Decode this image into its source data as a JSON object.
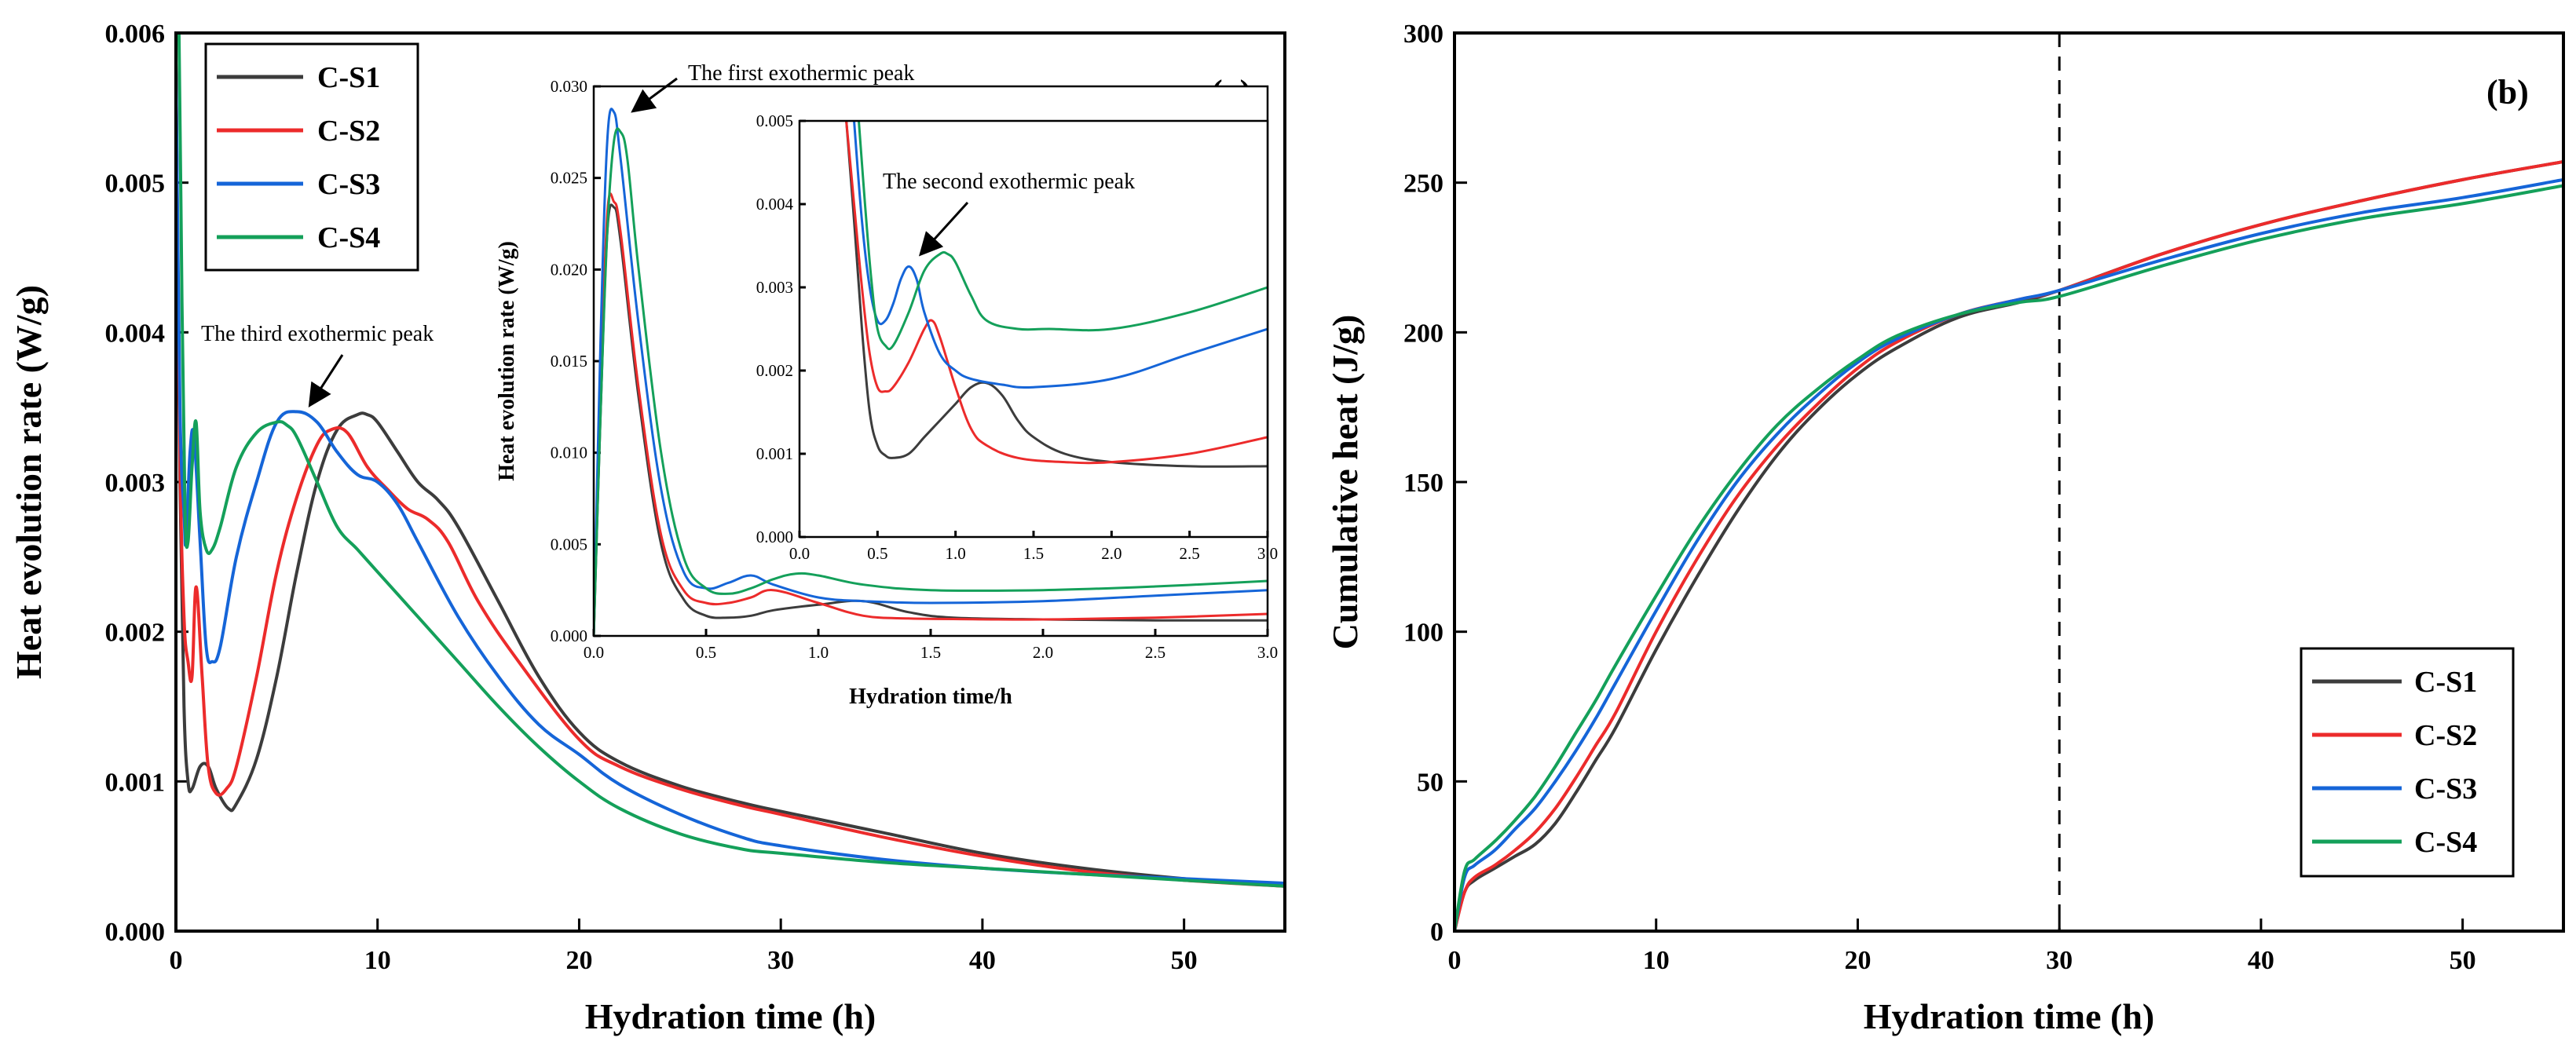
{
  "colors": {
    "C-S1": "#3c3c3c",
    "C-S2": "#ec2b2b",
    "C-S3": "#1565d8",
    "C-S4": "#14a05a"
  },
  "chart_data": [
    {
      "id": "a",
      "type": "line",
      "panel_label": "(a)",
      "xlabel": "Hydration time (h)",
      "ylabel": "Heat evolution rate (W/g)",
      "xlim": [
        0,
        55
      ],
      "ylim": [
        0,
        0.006
      ],
      "xticks": [
        0,
        10,
        20,
        30,
        40,
        50
      ],
      "xtick_labels": [
        "0",
        "10",
        "20",
        "30",
        "40",
        "50"
      ],
      "yticks": [
        0,
        0.001,
        0.002,
        0.003,
        0.004,
        0.005,
        0.006
      ],
      "ytick_labels": [
        "0.000",
        "0.001",
        "0.002",
        "0.003",
        "0.004",
        "0.005",
        "0.006"
      ],
      "legend": {
        "position": "top-left",
        "entries": [
          "C-S1",
          "C-S2",
          "C-S3",
          "C-S4"
        ]
      },
      "annotations": [
        {
          "text": "The third exothermic peak",
          "x": 5.3,
          "y": 0.00383,
          "arrow_from": [
            8.5,
            0.0037
          ],
          "arrow_to": [
            6.5,
            0.0035
          ]
        }
      ],
      "series": [
        {
          "name": "C-S1",
          "x": [
            0,
            0.2,
            0.4,
            0.6,
            0.8,
            1.2,
            1.6,
            2.0,
            2.6,
            3.0,
            4.0,
            5.0,
            6.0,
            7.0,
            8.0,
            9.0,
            9.5,
            10.0,
            11.0,
            12.0,
            13.0,
            14.0,
            16.0,
            18.0,
            20.0,
            22.0,
            25.0,
            28.0,
            30.0,
            35.0,
            40.0,
            45.0,
            50.0,
            55.0
          ],
          "y": [
            0.0058,
            0.003,
            0.0015,
            0.001,
            0.00095,
            0.0011,
            0.0011,
            0.00095,
            0.00082,
            0.00085,
            0.00115,
            0.0017,
            0.0024,
            0.003,
            0.00335,
            0.00345,
            0.00345,
            0.0034,
            0.0032,
            0.003,
            0.00288,
            0.0027,
            0.0022,
            0.0017,
            0.00133,
            0.00113,
            0.00097,
            0.00086,
            0.0008,
            0.00066,
            0.00052,
            0.00042,
            0.00035,
            0.0003
          ]
        },
        {
          "name": "C-S2",
          "x": [
            0,
            0.2,
            0.4,
            0.6,
            0.8,
            1.0,
            1.3,
            1.6,
            2.0,
            2.5,
            3.0,
            4.0,
            5.0,
            6.0,
            7.0,
            7.7,
            8.5,
            9.5,
            10.5,
            11.5,
            12.5,
            13.5,
            15.0,
            17.0,
            20.0,
            22.0,
            25.0,
            28.0,
            30.0,
            35.0,
            40.0,
            45.0,
            50.0,
            55.0
          ],
          "y": [
            0.0058,
            0.0032,
            0.0021,
            0.0018,
            0.0017,
            0.0023,
            0.0017,
            0.0011,
            0.00092,
            0.00095,
            0.0011,
            0.0017,
            0.0024,
            0.0029,
            0.00325,
            0.00335,
            0.00333,
            0.0031,
            0.00295,
            0.00282,
            0.00275,
            0.0026,
            0.0022,
            0.0018,
            0.00128,
            0.0011,
            0.00095,
            0.00084,
            0.00078,
            0.00063,
            0.0005,
            0.0004,
            0.00034,
            0.0003
          ]
        },
        {
          "name": "C-S3",
          "x": [
            0,
            0.2,
            0.4,
            0.5,
            0.7,
            0.9,
            1.2,
            1.5,
            1.8,
            2.2,
            3.0,
            4.0,
            5.0,
            6.0,
            7.0,
            8.0,
            9.0,
            10.0,
            11.0,
            12.0,
            14.0,
            16.0,
            18.0,
            20.0,
            22.0,
            25.0,
            28.0,
            30.0,
            35.0,
            40.0,
            45.0,
            50.0,
            55.0
          ],
          "y": [
            0.0058,
            0.0035,
            0.0028,
            0.0026,
            0.0032,
            0.0033,
            0.0026,
            0.0019,
            0.0018,
            0.0019,
            0.0025,
            0.003,
            0.0034,
            0.00347,
            0.0034,
            0.0032,
            0.00305,
            0.003,
            0.00285,
            0.0026,
            0.0021,
            0.0017,
            0.00138,
            0.00118,
            0.00098,
            0.00078,
            0.00063,
            0.00057,
            0.00048,
            0.00042,
            0.00038,
            0.00035,
            0.00032
          ]
        },
        {
          "name": "C-S4",
          "x": [
            0,
            0.15,
            0.3,
            0.45,
            0.6,
            0.8,
            1.0,
            1.2,
            1.5,
            1.8,
            2.2,
            3.0,
            4.0,
            5.0,
            5.5,
            6.0,
            7.0,
            8.0,
            9.0,
            10.0,
            12.0,
            14.0,
            16.0,
            18.0,
            20.0,
            22.0,
            25.0,
            28.0,
            30.0,
            35.0,
            40.0,
            45.0,
            50.0,
            55.0
          ],
          "y": [
            0.006,
            0.006,
            0.0042,
            0.0028,
            0.0026,
            0.0031,
            0.0034,
            0.0028,
            0.00255,
            0.00255,
            0.0027,
            0.0031,
            0.00333,
            0.0034,
            0.00338,
            0.0033,
            0.003,
            0.0027,
            0.00255,
            0.0024,
            0.0021,
            0.0018,
            0.0015,
            0.00123,
            0.001,
            0.00082,
            0.00065,
            0.00055,
            0.00052,
            0.00046,
            0.00042,
            0.00038,
            0.00034,
            0.0003
          ]
        }
      ]
    },
    {
      "id": "a-inset",
      "type": "line",
      "xlabel": "Hydration time/h",
      "ylabel": "Heat evolution rate (W/g)",
      "xlim": [
        0,
        3
      ],
      "ylim": [
        0,
        0.03
      ],
      "xticks": [
        0,
        0.5,
        1,
        1.5,
        2,
        2.5,
        3
      ],
      "xtick_labels": [
        "0.0",
        "0.5",
        "1.0",
        "1.5",
        "2.0",
        "2.5",
        "3.0"
      ],
      "yticks": [
        0,
        0.005,
        0.01,
        0.015,
        0.02,
        0.025,
        0.03
      ],
      "ytick_labels": [
        "0.000",
        "0.005",
        "0.010",
        "0.015",
        "0.020",
        "0.025",
        "0.030"
      ],
      "annotations": [
        {
          "text": "The first exothermic peak",
          "x": 0.85,
          "y": 0.0281,
          "arrow_from": [
            0.8,
            0.0294
          ],
          "arrow_to": [
            0.32,
            0.0258
          ]
        }
      ],
      "series": [
        {
          "name": "C-S1",
          "x": [
            0,
            0.03,
            0.06,
            0.09,
            0.12,
            0.2,
            0.3,
            0.4,
            0.5,
            0.6,
            0.7,
            0.8,
            1.0,
            1.2,
            1.4,
            1.6,
            2.0,
            2.5,
            3.0
          ],
          "y": [
            0.0,
            0.012,
            0.022,
            0.0234,
            0.0215,
            0.013,
            0.005,
            0.002,
            0.0011,
            0.001,
            0.0011,
            0.0014,
            0.0017,
            0.0019,
            0.0013,
            0.001,
            0.0009,
            0.00085,
            0.00085
          ]
        },
        {
          "name": "C-S2",
          "x": [
            0,
            0.03,
            0.06,
            0.09,
            0.12,
            0.2,
            0.3,
            0.4,
            0.5,
            0.6,
            0.7,
            0.8,
            1.0,
            1.2,
            1.4,
            1.6,
            2.0,
            2.5,
            3.0
          ],
          "y": [
            0.0,
            0.013,
            0.023,
            0.0237,
            0.022,
            0.0135,
            0.0055,
            0.0025,
            0.0018,
            0.0018,
            0.0021,
            0.0025,
            0.0018,
            0.0011,
            0.00095,
            0.00092,
            0.0009,
            0.001,
            0.0012
          ]
        },
        {
          "name": "C-S3",
          "x": [
            0,
            0.03,
            0.06,
            0.09,
            0.12,
            0.2,
            0.3,
            0.4,
            0.5,
            0.6,
            0.7,
            0.8,
            1.0,
            1.2,
            1.5,
            2.0,
            2.5,
            3.0
          ],
          "y": [
            0.0,
            0.016,
            0.027,
            0.0286,
            0.026,
            0.017,
            0.008,
            0.0035,
            0.0026,
            0.0029,
            0.0033,
            0.0028,
            0.0021,
            0.0019,
            0.0018,
            0.0019,
            0.0022,
            0.0025
          ]
        },
        {
          "name": "C-S4",
          "x": [
            0,
            0.03,
            0.06,
            0.09,
            0.12,
            0.15,
            0.2,
            0.3,
            0.4,
            0.5,
            0.6,
            0.7,
            0.8,
            0.9,
            1.0,
            1.2,
            1.5,
            2.0,
            2.5,
            3.0
          ],
          "y": [
            0.0,
            0.012,
            0.022,
            0.027,
            0.0275,
            0.026,
            0.02,
            0.01,
            0.0043,
            0.0026,
            0.0023,
            0.0026,
            0.0031,
            0.0034,
            0.0033,
            0.0028,
            0.0025,
            0.0025,
            0.0027,
            0.003
          ]
        }
      ]
    },
    {
      "id": "a-inset-zoom",
      "type": "line",
      "xlim": [
        0,
        3
      ],
      "ylim": [
        0,
        0.005
      ],
      "xticks": [
        0,
        0.5,
        1,
        1.5,
        2,
        2.5,
        3
      ],
      "xtick_labels": [
        "0.0",
        "0.5",
        "1.0",
        "1.5",
        "2.0",
        "2.5",
        "3.0"
      ],
      "yticks": [
        0,
        0.001,
        0.002,
        0.003,
        0.004,
        0.005
      ],
      "ytick_labels": [
        "0.000",
        "0.001",
        "0.002",
        "0.003",
        "0.004",
        "0.005"
      ],
      "annotations": [
        {
          "text": "The second exothermic peak",
          "x": 0.75,
          "y": 0.00435,
          "arrow_from": [
            1.3,
            0.0041
          ],
          "arrow_to": [
            1.0,
            0.0037
          ]
        }
      ],
      "series": [
        {
          "name": "C-S1",
          "x": [
            0.3,
            0.35,
            0.4,
            0.45,
            0.5,
            0.55,
            0.6,
            0.7,
            0.8,
            0.9,
            1.0,
            1.1,
            1.2,
            1.3,
            1.4,
            1.5,
            1.7,
            2.0,
            2.5,
            3.0
          ],
          "y": [
            0.005,
            0.0038,
            0.0025,
            0.0015,
            0.0011,
            0.00098,
            0.00095,
            0.001,
            0.0012,
            0.0014,
            0.0016,
            0.0018,
            0.00185,
            0.0017,
            0.0014,
            0.0012,
            0.001,
            0.0009,
            0.00085,
            0.00085
          ]
        },
        {
          "name": "C-S2",
          "x": [
            0.3,
            0.35,
            0.4,
            0.45,
            0.5,
            0.55,
            0.6,
            0.7,
            0.8,
            0.85,
            0.9,
            1.0,
            1.1,
            1.2,
            1.4,
            1.7,
            2.0,
            2.5,
            3.0
          ],
          "y": [
            0.005,
            0.004,
            0.003,
            0.0022,
            0.0018,
            0.00175,
            0.0018,
            0.0021,
            0.0025,
            0.0026,
            0.0024,
            0.0018,
            0.0013,
            0.0011,
            0.00095,
            0.0009,
            0.0009,
            0.001,
            0.0012
          ]
        },
        {
          "name": "C-S3",
          "x": [
            0.35,
            0.4,
            0.45,
            0.5,
            0.55,
            0.6,
            0.65,
            0.7,
            0.75,
            0.8,
            0.9,
            1.0,
            1.1,
            1.3,
            1.5,
            2.0,
            2.5,
            3.0
          ],
          "y": [
            0.005,
            0.0038,
            0.003,
            0.0026,
            0.0026,
            0.0028,
            0.0031,
            0.00325,
            0.0031,
            0.0027,
            0.0022,
            0.002,
            0.0019,
            0.00183,
            0.0018,
            0.0019,
            0.0022,
            0.0025
          ]
        },
        {
          "name": "C-S4",
          "x": [
            0.38,
            0.42,
            0.46,
            0.5,
            0.55,
            0.6,
            0.7,
            0.8,
            0.9,
            0.95,
            1.0,
            1.1,
            1.2,
            1.4,
            1.6,
            2.0,
            2.5,
            3.0
          ],
          "y": [
            0.005,
            0.004,
            0.0031,
            0.0025,
            0.0023,
            0.0023,
            0.0027,
            0.0032,
            0.0034,
            0.0034,
            0.0033,
            0.0029,
            0.0026,
            0.0025,
            0.0025,
            0.0025,
            0.0027,
            0.003
          ]
        }
      ]
    },
    {
      "id": "b",
      "type": "line",
      "panel_label": "(b)",
      "xlabel": "Hydration time (h)",
      "ylabel": "Cumulative heat (J/g)",
      "xlim": [
        0,
        55
      ],
      "ylim": [
        0,
        300
      ],
      "xticks": [
        0,
        10,
        20,
        30,
        40,
        50
      ],
      "xtick_labels": [
        "0",
        "10",
        "20",
        "30",
        "40",
        "50"
      ],
      "yticks": [
        0,
        50,
        100,
        150,
        200,
        250,
        300
      ],
      "ytick_labels": [
        "0",
        "50",
        "100",
        "150",
        "200",
        "250",
        "300"
      ],
      "vline_x": 30,
      "legend": {
        "position": "bottom-right",
        "entries": [
          "C-S1",
          "C-S2",
          "C-S3",
          "C-S4"
        ]
      },
      "series": [
        {
          "name": "C-S1",
          "x": [
            0,
            0.5,
            1,
            2,
            3,
            4,
            5,
            6,
            7,
            8,
            10,
            12,
            14,
            16,
            18,
            20,
            22,
            25,
            28,
            30,
            35,
            40,
            45,
            50,
            55
          ],
          "y": [
            0,
            13,
            17,
            21,
            25,
            29,
            36,
            46,
            57,
            68,
            94,
            118,
            140,
            159,
            174,
            186,
            195,
            205,
            210,
            214,
            226,
            236,
            244,
            251,
            257
          ]
        },
        {
          "name": "C-S2",
          "x": [
            0,
            0.5,
            1,
            2,
            3,
            4,
            5,
            6,
            7,
            8,
            10,
            12,
            14,
            16,
            18,
            20,
            22,
            25,
            28,
            30,
            35,
            40,
            45,
            50,
            55
          ],
          "y": [
            0,
            13,
            18,
            22,
            27,
            33,
            41,
            51,
            62,
            73,
            100,
            124,
            145,
            162,
            176,
            188,
            197,
            206,
            211,
            214,
            226,
            236,
            244,
            251,
            257
          ]
        },
        {
          "name": "C-S3",
          "x": [
            0,
            0.5,
            1,
            2,
            3,
            4,
            5,
            6,
            7,
            8,
            10,
            12,
            14,
            16,
            18,
            20,
            22,
            25,
            28,
            30,
            35,
            40,
            45,
            50,
            55
          ],
          "y": [
            0,
            18,
            22,
            27,
            34,
            41,
            50,
            60,
            71,
            83,
            107,
            130,
            150,
            166,
            179,
            190,
            198,
            206,
            211,
            214,
            224,
            233,
            240,
            245,
            251
          ]
        },
        {
          "name": "C-S4",
          "x": [
            0,
            0.5,
            1,
            2,
            3,
            4,
            5,
            6,
            7,
            8,
            10,
            12,
            14,
            16,
            18,
            20,
            22,
            25,
            28,
            30,
            35,
            40,
            45,
            50,
            55
          ],
          "y": [
            0,
            20,
            24,
            30,
            37,
            45,
            55,
            66,
            77,
            89,
            112,
            134,
            153,
            169,
            181,
            191,
            199,
            206,
            210,
            212,
            222,
            231,
            238,
            243,
            249
          ]
        }
      ]
    }
  ]
}
